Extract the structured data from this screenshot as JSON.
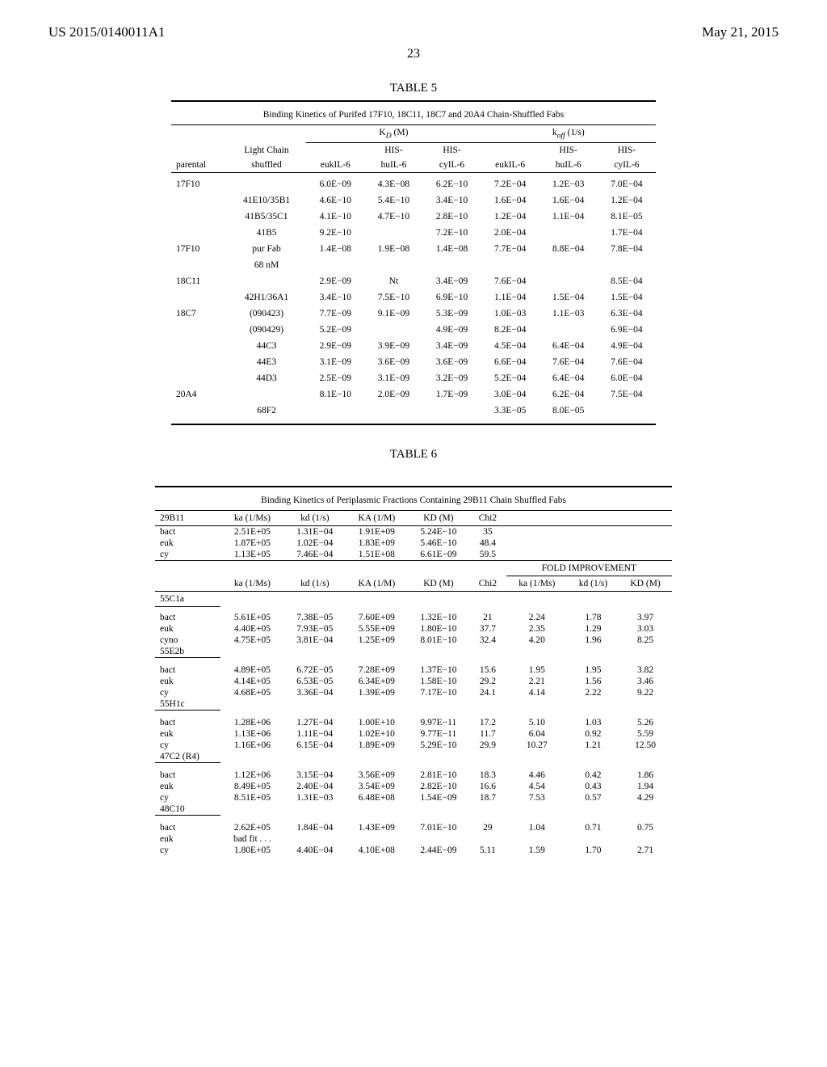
{
  "header": {
    "patent_number": "US 2015/0140011A1",
    "date": "May 21, 2015"
  },
  "page_number": "23",
  "table5": {
    "caption": "TABLE 5",
    "title": "Binding Kinetics of Purifed 17F10, 18C11, 18C7 and 20A4 Chain-Shuffled Fabs",
    "group_headers": {
      "kd": "K_D (M)",
      "koff": "k_off (1/s)"
    },
    "col_headers": {
      "parental": "parental",
      "light_chain": "Light Chain shuffled",
      "eukil6_1": "eukIL-6",
      "hishu_1": "HIS-huIL-6",
      "hiscy_1": "HIS-cyIL-6",
      "eukil6_2": "eukIL-6",
      "hishu_2": "HIS-huIL-6",
      "hiscy_2": "HIS-cyIL-6"
    },
    "rows": [
      {
        "c0": "17F10",
        "c1": "",
        "c2": "6.0E−09",
        "c3": "4.3E−08",
        "c4": "6.2E−10",
        "c5": "7.2E−04",
        "c6": "1.2E−03",
        "c7": "7.0E−04"
      },
      {
        "c0": "",
        "c1": "41E10/35B1",
        "c2": "4.6E−10",
        "c3": "5.4E−10",
        "c4": "3.4E−10",
        "c5": "1.6E−04",
        "c6": "1.6E−04",
        "c7": "1.2E−04"
      },
      {
        "c0": "",
        "c1": "41B5/35C1",
        "c2": "4.1E−10",
        "c3": "4.7E−10",
        "c4": "2.8E−10",
        "c5": "1.2E−04",
        "c6": "1.1E−04",
        "c7": "8.1E−05"
      },
      {
        "c0": "",
        "c1": "41B5",
        "c2": "9.2E−10",
        "c3": "",
        "c4": "7.2E−10",
        "c5": "2.0E−04",
        "c6": "",
        "c7": "1.7E−04"
      },
      {
        "c0": "17F10",
        "c1": "pur Fab",
        "c2": "1.4E−08",
        "c3": "1.9E−08",
        "c4": "1.4E−08",
        "c5": "7.7E−04",
        "c6": "8.8E−04",
        "c7": "7.8E−04"
      },
      {
        "c0": "",
        "c1": "68 nM",
        "c2": "",
        "c3": "",
        "c4": "",
        "c5": "",
        "c6": "",
        "c7": ""
      },
      {
        "c0": "18C11",
        "c1": "",
        "c2": "2.9E−09",
        "c3": "Nt",
        "c4": "3.4E−09",
        "c5": "7.6E−04",
        "c6": "",
        "c7": "8.5E−04"
      },
      {
        "c0": "",
        "c1": "42H1/36A1",
        "c2": "3.4E−10",
        "c3": "7.5E−10",
        "c4": "6.9E−10",
        "c5": "1.1E−04",
        "c6": "1.5E−04",
        "c7": "1.5E−04"
      },
      {
        "c0": "18C7",
        "c1": "(090423)",
        "c2": "7.7E−09",
        "c3": "9.1E−09",
        "c4": "5.3E−09",
        "c5": "1.0E−03",
        "c6": "1.1E−03",
        "c7": "6.3E−04"
      },
      {
        "c0": "",
        "c1": "(090429)",
        "c2": "5.2E−09",
        "c3": "",
        "c4": "4.9E−09",
        "c5": "8.2E−04",
        "c6": "",
        "c7": "6.9E−04"
      },
      {
        "c0": "",
        "c1": "44C3",
        "c2": "2.9E−09",
        "c3": "3.9E−09",
        "c4": "3.4E−09",
        "c5": "4.5E−04",
        "c6": "6.4E−04",
        "c7": "4.9E−04"
      },
      {
        "c0": "",
        "c1": "44E3",
        "c2": "3.1E−09",
        "c3": "3.6E−09",
        "c4": "3.6E−09",
        "c5": "6.6E−04",
        "c6": "7.6E−04",
        "c7": "7.6E−04"
      },
      {
        "c0": "",
        "c1": "44D3",
        "c2": "2.5E−09",
        "c3": "3.1E−09",
        "c4": "3.2E−09",
        "c5": "5.2E−04",
        "c6": "6.4E−04",
        "c7": "6.0E−04"
      },
      {
        "c0": "20A4",
        "c1": "",
        "c2": "8.1E−10",
        "c3": "2.0E−09",
        "c4": "1.7E−09",
        "c5": "3.0E−04",
        "c6": "6.2E−04",
        "c7": "7.5E−04"
      },
      {
        "c0": "",
        "c1": "68F2",
        "c2": "",
        "c3": "",
        "c4": "",
        "c5": "3.3E−05",
        "c6": "8.0E−05",
        "c7": ""
      }
    ]
  },
  "table6": {
    "caption": "TABLE 6",
    "title": "Binding Kinetics of Periplasmic Fractions Containing 29B11 Chain Shuffled Fabs",
    "headers1": {
      "c0": "29B11",
      "c1": "ka (1/Ms)",
      "c2": "kd (1/s)",
      "c3": "KA (1/M)",
      "c4": "KD (M)",
      "c5": "Chi2"
    },
    "block1": [
      {
        "c0": "bact",
        "c1": "2.51E+05",
        "c2": "1.31E−04",
        "c3": "1.91E+09",
        "c4": "5.24E−10",
        "c5": "35"
      },
      {
        "c0": "euk",
        "c1": "1.87E+05",
        "c2": "1.02E−04",
        "c3": "1.83E+09",
        "c4": "5.46E−10",
        "c5": "48.4"
      },
      {
        "c0": "cy",
        "c1": "1.13E+05",
        "c2": "7.46E−04",
        "c3": "1.51E+08",
        "c4": "6.61E−09",
        "c5": "59.5"
      }
    ],
    "fold_label": "FOLD IMPROVEMENT",
    "headers2": {
      "c0": "",
      "c1": "ka (1/Ms)",
      "c2": "kd (1/s)",
      "c3": "KA (1/M)",
      "c4": "KD (M)",
      "c5": "Chi2",
      "c6": "ka (1/Ms)",
      "c7": "kd (1/s)",
      "c8": "KD (M)"
    },
    "sections": [
      {
        "name": "55C1a",
        "rows": []
      },
      {
        "name": "",
        "rows": [
          {
            "c0": "bact",
            "c1": "5.61E+05",
            "c2": "7.38E−05",
            "c3": "7.60E+09",
            "c4": "1.32E−10",
            "c5": "21",
            "c6": "2.24",
            "c7": "1.78",
            "c8": "3.97"
          },
          {
            "c0": "euk",
            "c1": "4.40E+05",
            "c2": "7.93E−05",
            "c3": "5.55E+09",
            "c4": "1.80E−10",
            "c5": "37.7",
            "c6": "2.35",
            "c7": "1.29",
            "c8": "3.03"
          },
          {
            "c0": "cyno",
            "c1": "4.75E+05",
            "c2": "3.81E−04",
            "c3": "1.25E+09",
            "c4": "8.01E−10",
            "c5": "32.4",
            "c6": "4.20",
            "c7": "1.96",
            "c8": "8.25"
          },
          {
            "c0": "55E2b",
            "c1": "",
            "c2": "",
            "c3": "",
            "c4": "",
            "c5": "",
            "c6": "",
            "c7": "",
            "c8": ""
          }
        ]
      },
      {
        "name": "",
        "rows": [
          {
            "c0": "bact",
            "c1": "4.89E+05",
            "c2": "6.72E−05",
            "c3": "7.28E+09",
            "c4": "1.37E−10",
            "c5": "15.6",
            "c6": "1.95",
            "c7": "1.95",
            "c8": "3.82"
          },
          {
            "c0": "euk",
            "c1": "4.14E+05",
            "c2": "6.53E−05",
            "c3": "6.34E+09",
            "c4": "1.58E−10",
            "c5": "29.2",
            "c6": "2.21",
            "c7": "1.56",
            "c8": "3.46"
          },
          {
            "c0": "cy",
            "c1": "4.68E+05",
            "c2": "3.36E−04",
            "c3": "1.39E+09",
            "c4": "7.17E−10",
            "c5": "24.1",
            "c6": "4.14",
            "c7": "2.22",
            "c8": "9.22"
          },
          {
            "c0": "55H1c",
            "c1": "",
            "c2": "",
            "c3": "",
            "c4": "",
            "c5": "",
            "c6": "",
            "c7": "",
            "c8": ""
          }
        ]
      },
      {
        "name": "",
        "rows": [
          {
            "c0": "bact",
            "c1": "1.28E+06",
            "c2": "1.27E−04",
            "c3": "1.00E+10",
            "c4": "9.97E−11",
            "c5": "17.2",
            "c6": "5.10",
            "c7": "1.03",
            "c8": "5.26"
          },
          {
            "c0": "euk",
            "c1": "1.13E+06",
            "c2": "1.11E−04",
            "c3": "1.02E+10",
            "c4": "9.77E−11",
            "c5": "11.7",
            "c6": "6.04",
            "c7": "0.92",
            "c8": "5.59"
          },
          {
            "c0": "cy",
            "c1": "1.16E+06",
            "c2": "6.15E−04",
            "c3": "1.89E+09",
            "c4": "5.29E−10",
            "c5": "29.9",
            "c6": "10.27",
            "c7": "1.21",
            "c8": "12.50"
          },
          {
            "c0": "47C2 (R4)",
            "c1": "",
            "c2": "",
            "c3": "",
            "c4": "",
            "c5": "",
            "c6": "",
            "c7": "",
            "c8": ""
          }
        ]
      },
      {
        "name": "",
        "rows": [
          {
            "c0": "bact",
            "c1": "1.12E+06",
            "c2": "3.15E−04",
            "c3": "3.56E+09",
            "c4": "2.81E−10",
            "c5": "18.3",
            "c6": "4.46",
            "c7": "0.42",
            "c8": "1.86"
          },
          {
            "c0": "euk",
            "c1": "8.49E+05",
            "c2": "2.40E−04",
            "c3": "3.54E+09",
            "c4": "2.82E−10",
            "c5": "16.6",
            "c6": "4.54",
            "c7": "0.43",
            "c8": "1.94"
          },
          {
            "c0": "cy",
            "c1": "8.51E+05",
            "c2": "1.31E−03",
            "c3": "6.48E+08",
            "c4": "1.54E−09",
            "c5": "18.7",
            "c6": "7.53",
            "c7": "0.57",
            "c8": "4.29"
          },
          {
            "c0": "48C10",
            "c1": "",
            "c2": "",
            "c3": "",
            "c4": "",
            "c5": "",
            "c6": "",
            "c7": "",
            "c8": ""
          }
        ]
      },
      {
        "name": "",
        "rows": [
          {
            "c0": "bact",
            "c1": "2.62E+05",
            "c2": "1.84E−04",
            "c3": "1.43E+09",
            "c4": "7.01E−10",
            "c5": "29",
            "c6": "1.04",
            "c7": "0.71",
            "c8": "0.75"
          },
          {
            "c0": "euk",
            "c1": "bad fit . . .",
            "c2": "",
            "c3": "",
            "c4": "",
            "c5": "",
            "c6": "",
            "c7": "",
            "c8": ""
          },
          {
            "c0": "cy",
            "c1": "1.80E+05",
            "c2": "4.40E−04",
            "c3": "4.10E+08",
            "c4": "2.44E−09",
            "c5": "5.11",
            "c6": "1.59",
            "c7": "1.70",
            "c8": "2.71"
          }
        ]
      }
    ]
  }
}
